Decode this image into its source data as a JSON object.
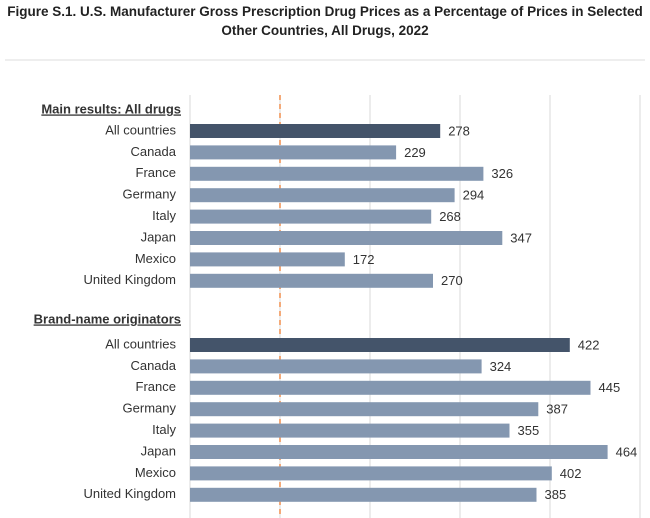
{
  "chart_data": {
    "type": "bar",
    "orientation": "horizontal",
    "title": "Figure S.1. U.S. Manufacturer Gross Prescription Drug Prices as a Percentage of Prices in Selected Other Countries, All Drugs, 2022",
    "groups": [
      {
        "label": "Main results: All drugs",
        "categories": [
          "All countries",
          "Canada",
          "France",
          "Germany",
          "Italy",
          "Japan",
          "Mexico",
          "United Kingdom"
        ],
        "values": [
          278,
          229,
          326,
          294,
          268,
          347,
          172,
          270
        ]
      },
      {
        "label": "Brand-name originators",
        "categories": [
          "All countries",
          "Canada",
          "France",
          "Germany",
          "Italy",
          "Japan",
          "Mexico",
          "United Kingdom"
        ],
        "values": [
          422,
          324,
          445,
          387,
          355,
          464,
          402,
          385
        ]
      }
    ],
    "color": "#8497b0",
    "highlight_color": "#44546a",
    "reference_line": 100,
    "reference_color": "#ed7d31",
    "xlim": [
      0,
      500
    ],
    "xticks": [
      0,
      100,
      200,
      300,
      400,
      500
    ],
    "grid": true
  }
}
